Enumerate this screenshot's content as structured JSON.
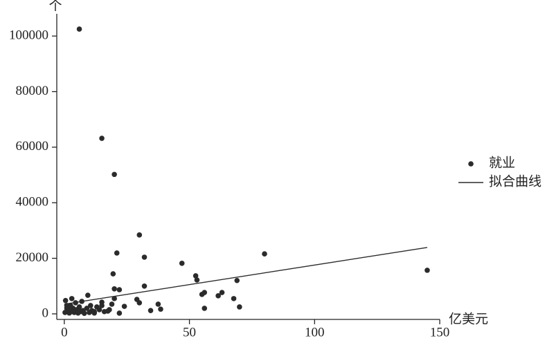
{
  "chart_data": {
    "type": "scatter",
    "xlabel": "亿美元",
    "ylabel": "个",
    "xlim": [
      -3,
      150
    ],
    "ylim": [
      -2000,
      108000
    ],
    "xticks": [
      0,
      50,
      100,
      150
    ],
    "yticks": [
      0,
      20000,
      40000,
      60000,
      80000,
      100000
    ],
    "legend": "right",
    "series": [
      {
        "name": "就业",
        "color": "#2b2b2b",
        "style": "points",
        "x": [
          6,
          15,
          20,
          30,
          21,
          32,
          47,
          80,
          145,
          19.5,
          52.5,
          53,
          69,
          32,
          20,
          22,
          56,
          55,
          63,
          61.5,
          67.7,
          70,
          56,
          29,
          30,
          37.5,
          38.5,
          34.5,
          22,
          24,
          15,
          15,
          9.4,
          20,
          17.4,
          0.5,
          1,
          1.5,
          2,
          2.5,
          3,
          3.5,
          4,
          4.5,
          5,
          5.5,
          6,
          6.5,
          7,
          7.5,
          8,
          9,
          10,
          10.5,
          11,
          12,
          13,
          12,
          0.3,
          1,
          2,
          3,
          14,
          16,
          18,
          19
        ],
        "values": [
          102500,
          63200,
          50200,
          28400,
          21900,
          20400,
          18200,
          21600,
          15700,
          14400,
          13700,
          12200,
          12000,
          10000,
          9000,
          8700,
          7700,
          7000,
          7700,
          6500,
          5500,
          2500,
          2000,
          5200,
          4000,
          3500,
          1700,
          1200,
          250,
          2700,
          4200,
          3000,
          6700,
          5500,
          1000,
          4800,
          2000,
          1000,
          300,
          3000,
          5500,
          2000,
          500,
          4000,
          1500,
          300,
          2500,
          800,
          4500,
          1200,
          200,
          2000,
          500,
          3000,
          1200,
          800,
          2500,
          300,
          500,
          3000,
          1500,
          800,
          1500,
          800,
          1500,
          3500
        ]
      },
      {
        "name": "拟合曲线",
        "color": "#2b2b2b",
        "style": "line",
        "x": [
          0,
          145
        ],
        "values": [
          3500,
          23900
        ]
      }
    ]
  }
}
